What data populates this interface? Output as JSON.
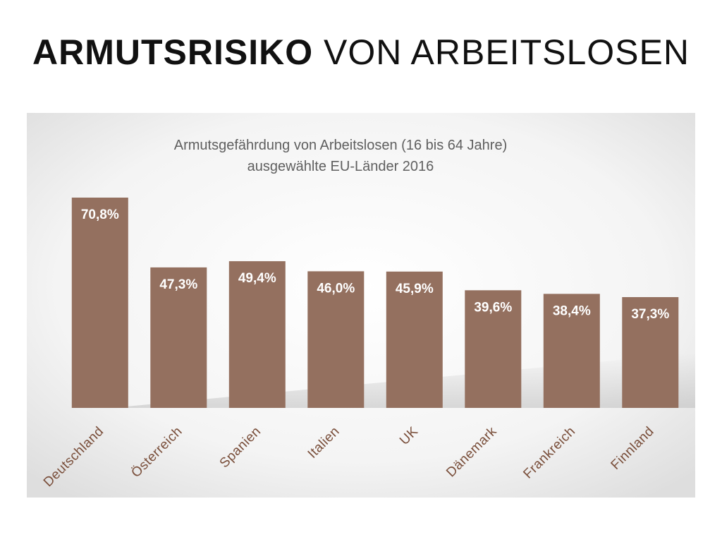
{
  "slide": {
    "title_bold": "ARMUTSRISIKO",
    "title_rest": "VON ARBEITSLOSEN"
  },
  "chart_data": {
    "type": "bar",
    "title": "Armutsgefährdung von Arbeitslosen (16 bis 64 Jahre)",
    "subtitle": "ausgewählte EU-Länder 2016",
    "categories": [
      "Deutschland",
      "Österreich",
      "Spanien",
      "Italien",
      "UK",
      "Dänemark",
      "Frankreich",
      "Finnland"
    ],
    "values": [
      70.8,
      47.3,
      49.4,
      46.0,
      45.9,
      39.6,
      38.4,
      37.3
    ],
    "value_labels": [
      "70,8%",
      "47,3%",
      "49,4%",
      "46,0%",
      "45,9%",
      "39,6%",
      "38,4%",
      "37,3%"
    ],
    "xlabel": "",
    "ylabel": "",
    "ylim": [
      0,
      100
    ],
    "grid": false,
    "legend": "none",
    "colors": {
      "bar": "#94705f",
      "value_label": "#ffffff",
      "category_label": "#7a4f3b",
      "title": "#5f5f5f"
    }
  }
}
